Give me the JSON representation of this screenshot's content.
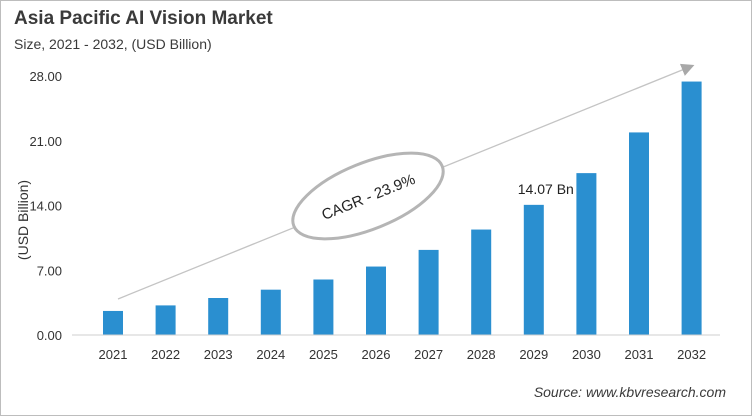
{
  "chart_data": {
    "type": "bar",
    "title": "Asia Pacific AI Vision Market",
    "subtitle": "Size, 2021 - 2032, (USD Billion)",
    "ylabel": "(USD Billion)",
    "xlabel": "",
    "ylim": [
      0,
      28
    ],
    "yticks": [
      "0.00",
      "7.00",
      "14.00",
      "21.00",
      "28.00"
    ],
    "categories": [
      "2021",
      "2022",
      "2023",
      "2024",
      "2025",
      "2026",
      "2027",
      "2028",
      "2029",
      "2030",
      "2031",
      "2032"
    ],
    "values": [
      2.6,
      3.2,
      4.0,
      4.9,
      6.0,
      7.4,
      9.2,
      11.4,
      14.07,
      17.5,
      21.9,
      27.4
    ],
    "data_label": {
      "category": "2029",
      "text": "14.07 Bn"
    },
    "annotation": "CAGR - 23.9%",
    "grid": false,
    "bar_color": "#2a8fd0"
  },
  "source": "Source: www.kbvresearch.com"
}
